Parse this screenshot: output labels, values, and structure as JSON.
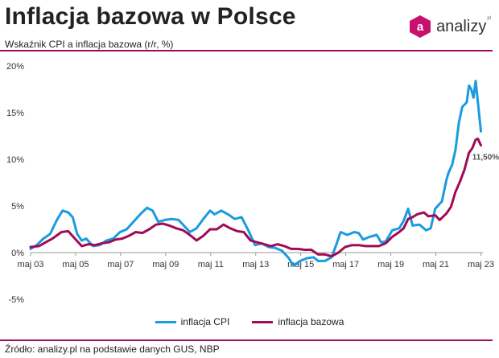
{
  "header": {
    "title": "Inflacja bazowa w Polsce",
    "subtitle": "Wskaźnik CPI a inflacja bazowa (r/r, %)"
  },
  "logo": {
    "text": "analizy",
    "sup": "pl",
    "color": "#c8106e"
  },
  "source": "Źródło: analizy.pl na podstawie danych GUS, NBP",
  "chart_data": {
    "type": "line",
    "title": "",
    "xlabel": "",
    "ylabel": "",
    "ylim": [
      -5,
      20
    ],
    "yticks": [
      -5,
      0,
      5,
      10,
      15,
      20
    ],
    "ytick_labels": [
      "-5%",
      "0%",
      "5%",
      "10%",
      "15%",
      "20%"
    ],
    "xlim": [
      2003.33,
      2023.42
    ],
    "xticks": [
      2003.33,
      2005.33,
      2007.33,
      2009.33,
      2011.33,
      2013.33,
      2015.33,
      2017.33,
      2019.33,
      2021.33,
      2023.33
    ],
    "xtick_labels": [
      "maj 03",
      "maj 05",
      "maj 07",
      "maj 09",
      "maj 11",
      "maj 13",
      "maj 15",
      "maj 17",
      "maj 19",
      "maj 21",
      "maj 23"
    ],
    "grid": "none",
    "legend": "bottom-center",
    "annotation": {
      "text": "11,50%",
      "x": 2023.33,
      "y": 11.5
    },
    "series": [
      {
        "name": "inflacja CPI",
        "color": "#1a9be0",
        "points": [
          [
            2003.33,
            0.4
          ],
          [
            2003.6,
            0.8
          ],
          [
            2003.9,
            1.5
          ],
          [
            2004.2,
            2.0
          ],
          [
            2004.5,
            3.5
          ],
          [
            2004.75,
            4.5
          ],
          [
            2005.0,
            4.3
          ],
          [
            2005.2,
            3.8
          ],
          [
            2005.4,
            2.0
          ],
          [
            2005.6,
            1.3
          ],
          [
            2005.8,
            1.5
          ],
          [
            2006.1,
            0.7
          ],
          [
            2006.4,
            0.8
          ],
          [
            2006.7,
            1.3
          ],
          [
            2007.0,
            1.5
          ],
          [
            2007.3,
            2.2
          ],
          [
            2007.6,
            2.5
          ],
          [
            2007.9,
            3.3
          ],
          [
            2008.2,
            4.1
          ],
          [
            2008.5,
            4.8
          ],
          [
            2008.75,
            4.5
          ],
          [
            2009.0,
            3.3
          ],
          [
            2009.3,
            3.5
          ],
          [
            2009.6,
            3.6
          ],
          [
            2009.9,
            3.5
          ],
          [
            2010.1,
            3.0
          ],
          [
            2010.4,
            2.2
          ],
          [
            2010.7,
            2.6
          ],
          [
            2011.0,
            3.6
          ],
          [
            2011.3,
            4.5
          ],
          [
            2011.5,
            4.1
          ],
          [
            2011.8,
            4.5
          ],
          [
            2012.1,
            4.1
          ],
          [
            2012.4,
            3.6
          ],
          [
            2012.7,
            3.8
          ],
          [
            2013.0,
            2.4
          ],
          [
            2013.3,
            0.8
          ],
          [
            2013.6,
            1.0
          ],
          [
            2013.9,
            0.6
          ],
          [
            2014.2,
            0.5
          ],
          [
            2014.5,
            0.2
          ],
          [
            2014.8,
            -0.6
          ],
          [
            2015.0,
            -1.4
          ],
          [
            2015.3,
            -0.9
          ],
          [
            2015.6,
            -0.6
          ],
          [
            2015.9,
            -0.5
          ],
          [
            2016.1,
            -0.9
          ],
          [
            2016.4,
            -0.9
          ],
          [
            2016.7,
            -0.5
          ],
          [
            2016.9,
            0.8
          ],
          [
            2017.1,
            2.2
          ],
          [
            2017.4,
            1.9
          ],
          [
            2017.7,
            2.2
          ],
          [
            2017.9,
            2.1
          ],
          [
            2018.1,
            1.4
          ],
          [
            2018.4,
            1.7
          ],
          [
            2018.7,
            1.9
          ],
          [
            2018.9,
            1.1
          ],
          [
            2019.1,
            1.2
          ],
          [
            2019.4,
            2.4
          ],
          [
            2019.7,
            2.6
          ],
          [
            2019.9,
            3.4
          ],
          [
            2020.1,
            4.7
          ],
          [
            2020.3,
            2.9
          ],
          [
            2020.6,
            3.0
          ],
          [
            2020.9,
            2.4
          ],
          [
            2021.1,
            2.6
          ],
          [
            2021.3,
            4.7
          ],
          [
            2021.6,
            5.5
          ],
          [
            2021.8,
            7.8
          ],
          [
            2021.9,
            8.6
          ],
          [
            2022.05,
            9.4
          ],
          [
            2022.2,
            11.0
          ],
          [
            2022.35,
            13.9
          ],
          [
            2022.5,
            15.6
          ],
          [
            2022.7,
            16.1
          ],
          [
            2022.8,
            17.9
          ],
          [
            2022.9,
            17.5
          ],
          [
            2023.0,
            16.6
          ],
          [
            2023.1,
            18.4
          ],
          [
            2023.2,
            16.1
          ],
          [
            2023.33,
            13.0
          ]
        ]
      },
      {
        "name": "inflacja bazowa",
        "color": "#a00b57",
        "points": [
          [
            2003.33,
            0.6
          ],
          [
            2003.7,
            0.7
          ],
          [
            2004.0,
            1.1
          ],
          [
            2004.3,
            1.5
          ],
          [
            2004.7,
            2.2
          ],
          [
            2005.0,
            2.3
          ],
          [
            2005.3,
            1.5
          ],
          [
            2005.6,
            0.7
          ],
          [
            2005.9,
            0.9
          ],
          [
            2006.2,
            0.8
          ],
          [
            2006.5,
            1.0
          ],
          [
            2006.8,
            1.1
          ],
          [
            2007.1,
            1.4
          ],
          [
            2007.4,
            1.5
          ],
          [
            2007.7,
            1.8
          ],
          [
            2008.0,
            2.2
          ],
          [
            2008.3,
            2.1
          ],
          [
            2008.6,
            2.5
          ],
          [
            2008.9,
            3.0
          ],
          [
            2009.2,
            3.1
          ],
          [
            2009.5,
            2.9
          ],
          [
            2009.8,
            2.6
          ],
          [
            2010.1,
            2.4
          ],
          [
            2010.4,
            1.9
          ],
          [
            2010.7,
            1.3
          ],
          [
            2011.0,
            1.8
          ],
          [
            2011.3,
            2.5
          ],
          [
            2011.6,
            2.5
          ],
          [
            2011.9,
            3.0
          ],
          [
            2012.2,
            2.6
          ],
          [
            2012.5,
            2.3
          ],
          [
            2012.8,
            2.2
          ],
          [
            2013.1,
            1.3
          ],
          [
            2013.4,
            1.1
          ],
          [
            2013.7,
            0.9
          ],
          [
            2014.0,
            0.7
          ],
          [
            2014.3,
            0.9
          ],
          [
            2014.6,
            0.7
          ],
          [
            2014.9,
            0.4
          ],
          [
            2015.2,
            0.4
          ],
          [
            2015.5,
            0.3
          ],
          [
            2015.8,
            0.3
          ],
          [
            2016.1,
            -0.2
          ],
          [
            2016.4,
            -0.2
          ],
          [
            2016.7,
            -0.4
          ],
          [
            2017.0,
            0.0
          ],
          [
            2017.3,
            0.6
          ],
          [
            2017.6,
            0.8
          ],
          [
            2017.9,
            0.8
          ],
          [
            2018.2,
            0.7
          ],
          [
            2018.5,
            0.7
          ],
          [
            2018.8,
            0.7
          ],
          [
            2019.1,
            1.0
          ],
          [
            2019.4,
            1.7
          ],
          [
            2019.7,
            2.2
          ],
          [
            2019.9,
            2.6
          ],
          [
            2020.1,
            3.6
          ],
          [
            2020.3,
            3.8
          ],
          [
            2020.5,
            4.1
          ],
          [
            2020.8,
            4.3
          ],
          [
            2021.0,
            3.9
          ],
          [
            2021.3,
            4.0
          ],
          [
            2021.5,
            3.5
          ],
          [
            2021.8,
            4.2
          ],
          [
            2022.0,
            4.9
          ],
          [
            2022.2,
            6.5
          ],
          [
            2022.4,
            7.6
          ],
          [
            2022.6,
            8.9
          ],
          [
            2022.8,
            10.7
          ],
          [
            2022.95,
            11.2
          ],
          [
            2023.1,
            12.1
          ],
          [
            2023.2,
            12.2
          ],
          [
            2023.33,
            11.5
          ]
        ]
      }
    ]
  }
}
